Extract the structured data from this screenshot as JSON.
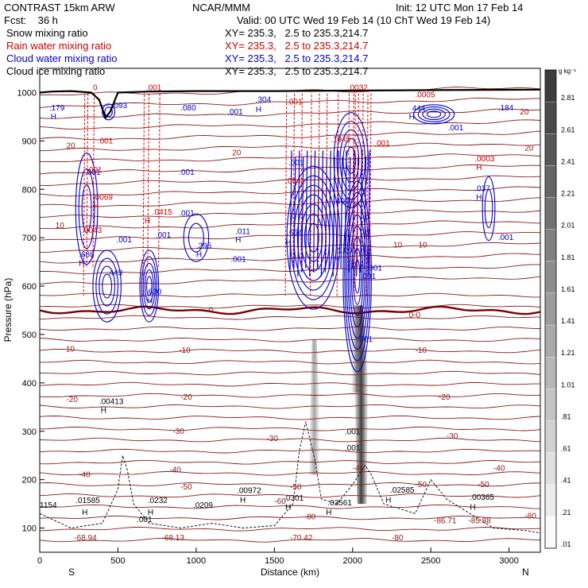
{
  "header": {
    "title_left": "CONTRAST 15km ARW",
    "center": "NCAR/MMM",
    "init": "Init: 12 UTC Mon 17 Feb 14",
    "fcst": "Fcst:    36 h",
    "valid": "Valid: 00 UTC Wed 19 Feb 14 (10 ChT Wed 19 Feb 14)",
    "legend": [
      {
        "label": "Snow mixing ratio",
        "xy": "XY= 235.3,   2.5 to 235.3,214.7",
        "color": "#000000"
      },
      {
        "label": "Rain water mixing ratio",
        "xy": "XY= 235.3,   2.5 to 235.3,214.7",
        "color": "#cc0000"
      },
      {
        "label": "Cloud water mixing ratio",
        "xy": "XY= 235.3,   2.5 to 235.3,214.7",
        "color": "#0000cc"
      },
      {
        "label": "Cloud ice mixing ratio",
        "xy": "XY= 235.3,   2.5 to 235.3,214.7",
        "color": "#000000"
      }
    ]
  },
  "chart_data": {
    "type": "cross-section",
    "xlabel": "Distance (km)",
    "ylabel": "Pressure (hPa)",
    "x_ticks": [
      0,
      500,
      1000,
      1500,
      2000,
      2500,
      3000
    ],
    "y_ticks": [
      100,
      200,
      300,
      400,
      500,
      600,
      700,
      800,
      900,
      1000
    ],
    "xlim": [
      0,
      3200
    ],
    "ylim": [
      1050,
      50
    ],
    "x_end_labels": {
      "left": "S",
      "right": "N"
    },
    "colorbar": {
      "unit": "g kg⁻¹",
      "ticks": [
        "2.81",
        "2.61",
        "2.41",
        "2.21",
        "2.01",
        "1.81",
        "1.61",
        "1.41",
        "1.21",
        "1.01",
        ".81",
        ".61",
        ".41",
        ".21",
        ".01"
      ]
    },
    "temperature_labels": [
      {
        "t": "-68.94",
        "x": 220,
        "p": 75
      },
      {
        "t": "-68.13",
        "x": 780,
        "p": 75
      },
      {
        "t": "-70.42",
        "x": 1600,
        "p": 75
      },
      {
        "t": "-80",
        "x": 2250,
        "p": 75
      },
      {
        "t": "-86.71",
        "x": 2520,
        "p": 110
      },
      {
        "t": "-85.88",
        "x": 2740,
        "p": 110
      },
      {
        "t": "-80",
        "x": 1690,
        "p": 118
      },
      {
        "t": "-80",
        "x": 3100,
        "p": 120
      },
      {
        "t": "-60",
        "x": 1500,
        "p": 150
      },
      {
        "t": "-50",
        "x": 900,
        "p": 180
      },
      {
        "t": "-50",
        "x": 1600,
        "p": 180
      },
      {
        "t": "-50",
        "x": 2400,
        "p": 185
      },
      {
        "t": "-50",
        "x": 2800,
        "p": 185
      },
      {
        "t": "-40",
        "x": 250,
        "p": 205
      },
      {
        "t": "-40",
        "x": 830,
        "p": 215
      },
      {
        "t": "-40",
        "x": 2000,
        "p": 218
      },
      {
        "t": "-40",
        "x": 2900,
        "p": 218
      },
      {
        "t": "-30",
        "x": 850,
        "p": 295
      },
      {
        "t": "-30",
        "x": 1450,
        "p": 280
      },
      {
        "t": "-30",
        "x": 2600,
        "p": 285
      },
      {
        "t": "-20",
        "x": 170,
        "p": 360
      },
      {
        "t": "-20",
        "x": 900,
        "p": 365
      },
      {
        "t": "-20",
        "x": 2550,
        "p": 365
      },
      {
        "t": "-10",
        "x": 150,
        "p": 465
      },
      {
        "t": "-10",
        "x": 890,
        "p": 462
      },
      {
        "t": "-10",
        "x": 2400,
        "p": 462
      },
      {
        "t": "0",
        "x": 1080,
        "p": 545
      },
      {
        "t": "0-0",
        "x": 2360,
        "p": 535
      },
      {
        "t": "10",
        "x": 100,
        "p": 720
      },
      {
        "t": "10",
        "x": 2260,
        "p": 680
      },
      {
        "t": "10",
        "x": 2420,
        "p": 680
      },
      {
        "t": "20",
        "x": 170,
        "p": 885
      },
      {
        "t": "20",
        "x": 1230,
        "p": 870
      },
      {
        "t": "20",
        "x": 3100,
        "p": 880
      }
    ],
    "cloud_labels": [
      {
        "t": "1154",
        "x": 0,
        "p": 142
      },
      {
        "t": "H",
        "x": 270,
        "p": 127
      },
      {
        "t": ".01585",
        "x": 230,
        "p": 152
      },
      {
        "t": ".001",
        "x": 620,
        "p": 112
      },
      {
        "t": "H",
        "x": 690,
        "p": 127
      },
      {
        "t": ".0232",
        "x": 690,
        "p": 152
      },
      {
        "t": ".0209",
        "x": 980,
        "p": 142
      },
      {
        "t": "H",
        "x": 1280,
        "p": 153
      },
      {
        "t": ".00972",
        "x": 1260,
        "p": 172
      },
      {
        "t": "H",
        "x": 1570,
        "p": 138
      },
      {
        "t": ".0301",
        "x": 1560,
        "p": 157
      },
      {
        "t": "H",
        "x": 1830,
        "p": 127
      },
      {
        "t": ".03561",
        "x": 1840,
        "p": 147
      },
      {
        "t": "H",
        "x": 2210,
        "p": 153
      },
      {
        "t": ".02585",
        "x": 2240,
        "p": 173
      },
      {
        "t": "H",
        "x": 2750,
        "p": 138
      },
      {
        "t": ".00365",
        "x": 2750,
        "p": 158
      },
      {
        "t": "H",
        "x": 390,
        "p": 338
      },
      {
        "t": ".00413",
        "x": 380,
        "p": 356
      },
      {
        "t": ".001",
        "x": 1950,
        "p": 260
      },
      {
        "t": ".001",
        "x": 1950,
        "p": 294
      }
    ],
    "cloudwater_labels": [
      {
        "t": ".001",
        "x": 2030,
        "p": 485
      },
      {
        "t": "H",
        "x": 685,
        "p": 565
      },
      {
        "t": ".630",
        "x": 680,
        "p": 583
      },
      {
        "t": ".443",
        "x": 430,
        "p": 622
      },
      {
        "t": "H",
        "x": 250,
        "p": 642
      },
      {
        "t": ".686",
        "x": 250,
        "p": 660
      },
      {
        "t": ".001",
        "x": 490,
        "p": 690
      },
      {
        "t": "H",
        "x": 1000,
        "p": 660
      },
      {
        "t": ".295",
        "x": 1000,
        "p": 678
      },
      {
        "t": ".001",
        "x": 1220,
        "p": 650
      },
      {
        "t": "H",
        "x": 1250,
        "p": 690
      },
      {
        "t": ".011",
        "x": 1250,
        "p": 708
      },
      {
        "t": ".001",
        "x": 740,
        "p": 700
      },
      {
        "t": ".001",
        "x": 890,
        "p": 745
      },
      {
        "t": ".654",
        "x": 1580,
        "p": 705
      },
      {
        "t": "H",
        "x": 1570,
        "p": 685
      },
      {
        "t": "H",
        "x": 1880,
        "p": 650
      },
      {
        "t": "1.001",
        "x": 1900,
        "p": 668
      },
      {
        "t": ".001",
        "x": 2050,
        "p": 615
      },
      {
        "t": ".001",
        "x": 2090,
        "p": 632
      },
      {
        "t": ".401",
        "x": 1880,
        "p": 770
      },
      {
        "t": ".001",
        "x": 1590,
        "p": 850
      },
      {
        "t": ".001",
        "x": 290,
        "p": 830
      },
      {
        "t": ".001",
        "x": 890,
        "p": 830
      },
      {
        "t": ".179",
        "x": 60,
        "p": 963
      },
      {
        "t": "H",
        "x": 70,
        "p": 945
      },
      {
        "t": ".093",
        "x": 460,
        "p": 968
      },
      {
        "t": ".080",
        "x": 900,
        "p": 963
      },
      {
        "t": ".001",
        "x": 1200,
        "p": 955
      },
      {
        "t": "H",
        "x": 1380,
        "p": 960
      },
      {
        "t": ".304",
        "x": 1380,
        "p": 980
      },
      {
        "t": "H",
        "x": 2360,
        "p": 945
      },
      {
        "t": "444",
        "x": 2380,
        "p": 962
      },
      {
        "t": ".001",
        "x": 2610,
        "p": 922
      },
      {
        "t": ".184",
        "x": 2930,
        "p": 963
      },
      {
        "t": "H",
        "x": 2790,
        "p": 778
      },
      {
        "t": ".037",
        "x": 2780,
        "p": 796
      },
      {
        "t": ".001",
        "x": 2930,
        "p": 695
      }
    ],
    "rain_labels": [
      {
        "t": ".0043",
        "x": 270,
        "p": 710
      },
      {
        "t": "H",
        "x": 340,
        "p": 760
      },
      {
        "t": ".0069",
        "x": 340,
        "p": 778
      },
      {
        "t": ".001",
        "x": 300,
        "p": 835
      },
      {
        "t": ".001",
        "x": 370,
        "p": 895
      },
      {
        "t": "H",
        "x": 670,
        "p": 730
      },
      {
        "t": ".0415",
        "x": 720,
        "p": 748
      },
      {
        "t": ".0541",
        "x": 1570,
        "p": 812
      },
      {
        "t": ".1945",
        "x": 1860,
        "p": 898
      },
      {
        "t": ".0005",
        "x": 2400,
        "p": 990
      },
      {
        "t": "H",
        "x": 2790,
        "p": 840
      },
      {
        "t": ".0003",
        "x": 2780,
        "p": 858
      },
      {
        "t": ".001",
        "x": 1580,
        "p": 975
      },
      {
        "t": ".001",
        "x": 680,
        "p": 1005
      },
      {
        "t": "0",
        "x": 340,
        "p": 1005
      },
      {
        "t": ".0032",
        "x": 1970,
        "p": 1005
      },
      {
        "t": ".001",
        "x": 2140,
        "p": 890
      },
      {
        "t": "20",
        "x": 3070,
        "p": 955
      }
    ],
    "surface_pressure": [
      [
        0,
        1000
      ],
      [
        80,
        1002
      ],
      [
        200,
        1003
      ],
      [
        330,
        1000
      ],
      [
        380,
        985
      ],
      [
        420,
        948
      ],
      [
        450,
        960
      ],
      [
        500,
        1000
      ],
      [
        700,
        1002
      ],
      [
        1000,
        1003
      ],
      [
        1500,
        1003
      ],
      [
        2000,
        1004
      ],
      [
        2500,
        1005
      ],
      [
        3200,
        1006
      ]
    ]
  }
}
